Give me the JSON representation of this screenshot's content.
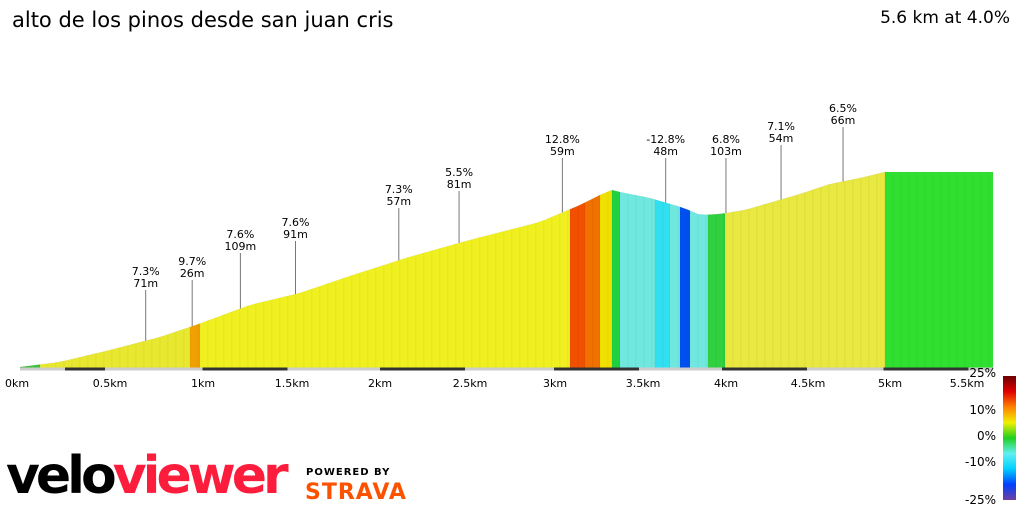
{
  "title": "alto de los pinos desde san juan cris",
  "summary": "5.6 km at 4.0%",
  "chart_data": {
    "type": "area",
    "x_ticks": [
      "0km",
      "0.5km",
      "1km",
      "1.5km",
      "2km",
      "2.5km",
      "3km",
      "3.5km",
      "4km",
      "4.5km",
      "5km",
      "5.5km"
    ],
    "annotations": [
      {
        "km": 0.73,
        "grade": "7.3%",
        "len": "71m"
      },
      {
        "km": 1.0,
        "grade": "9.7%",
        "len": "26m"
      },
      {
        "km": 1.28,
        "grade": "7.6%",
        "len": "109m"
      },
      {
        "km": 1.6,
        "grade": "7.6%",
        "len": "91m"
      },
      {
        "km": 2.2,
        "grade": "7.3%",
        "len": "57m"
      },
      {
        "km": 2.55,
        "grade": "5.5%",
        "len": "81m"
      },
      {
        "km": 3.15,
        "grade": "12.8%",
        "len": "59m"
      },
      {
        "km": 3.75,
        "grade": "-12.8%",
        "len": "48m"
      },
      {
        "km": 4.1,
        "grade": "6.8%",
        "len": "103m"
      },
      {
        "km": 4.42,
        "grade": "7.1%",
        "len": "54m"
      },
      {
        "km": 4.78,
        "grade": "6.5%",
        "len": "66m"
      }
    ],
    "legend_ticks": [
      "25%",
      "10%",
      "0%",
      "-10%",
      "-25%"
    ],
    "legend_colors": [
      "#6b0000",
      "#e00000",
      "#ff8000",
      "#f0f000",
      "#20d020",
      "#60f0f0",
      "#00d0ff",
      "#0040ff",
      "#7040a0"
    ]
  },
  "branding": {
    "logo_a": "velo",
    "logo_b": "viewer",
    "powered": "POWERED BY",
    "strava": "STRAVA"
  }
}
